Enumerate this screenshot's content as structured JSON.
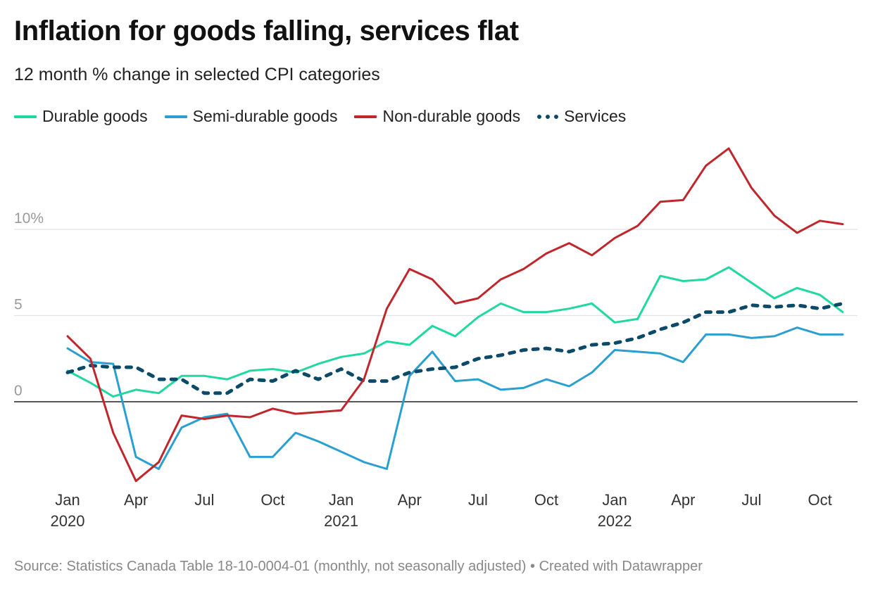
{
  "header": {
    "title": "Inflation for goods falling, services flat",
    "subtitle": "12 month % change in selected CPI categories"
  },
  "legend": [
    {
      "label": "Durable goods",
      "color": "#1fd9a0",
      "style": "solid"
    },
    {
      "label": "Semi-durable goods",
      "color": "#2a9fd0",
      "style": "solid"
    },
    {
      "label": "Non-durable goods",
      "color": "#c0272d",
      "style": "solid"
    },
    {
      "label": "Services",
      "color": "#0b4a69",
      "style": "dotted"
    }
  ],
  "footer": {
    "source": "Source: Statistics Canada Table 18-10-0004-01 (monthly, not seasonally adjusted) • Created with Datawrapper"
  },
  "chart_data": {
    "type": "line",
    "x": [
      "2020-01",
      "2020-02",
      "2020-03",
      "2020-04",
      "2020-05",
      "2020-06",
      "2020-07",
      "2020-08",
      "2020-09",
      "2020-10",
      "2020-11",
      "2020-12",
      "2021-01",
      "2021-02",
      "2021-03",
      "2021-04",
      "2021-05",
      "2021-06",
      "2021-07",
      "2021-08",
      "2021-09",
      "2021-10",
      "2021-11",
      "2021-12",
      "2022-01",
      "2022-02",
      "2022-03",
      "2022-04",
      "2022-05",
      "2022-06",
      "2022-07",
      "2022-08",
      "2022-09",
      "2022-10",
      "2022-11"
    ],
    "x_ticks": [
      {
        "month": "Jan",
        "year": "2020",
        "x": "2020-01"
      },
      {
        "month": "Apr",
        "year": "",
        "x": "2020-04"
      },
      {
        "month": "Jul",
        "year": "",
        "x": "2020-07"
      },
      {
        "month": "Oct",
        "year": "",
        "x": "2020-10"
      },
      {
        "month": "Jan",
        "year": "2021",
        "x": "2021-01"
      },
      {
        "month": "Apr",
        "year": "",
        "x": "2021-04"
      },
      {
        "month": "Jul",
        "year": "",
        "x": "2021-07"
      },
      {
        "month": "Oct",
        "year": "",
        "x": "2021-10"
      },
      {
        "month": "Jan",
        "year": "2022",
        "x": "2022-01"
      },
      {
        "month": "Apr",
        "year": "",
        "x": "2022-04"
      },
      {
        "month": "Jul",
        "year": "",
        "x": "2022-07"
      },
      {
        "month": "Oct",
        "year": "",
        "x": "2022-10"
      }
    ],
    "y_ticks": [
      {
        "value": 10,
        "label": "10%"
      },
      {
        "value": 5,
        "label": "5"
      },
      {
        "value": 0,
        "label": "0"
      }
    ],
    "ylim": [
      -4.8,
      15.5
    ],
    "grid": true,
    "legend_position": "top-left",
    "series": [
      {
        "name": "Durable goods",
        "color": "#1fd9a0",
        "style": "solid",
        "values": [
          1.8,
          1.1,
          0.3,
          0.7,
          0.5,
          1.5,
          1.5,
          1.3,
          1.8,
          1.9,
          1.7,
          2.2,
          2.6,
          2.8,
          3.5,
          3.3,
          4.4,
          3.8,
          4.9,
          5.7,
          5.2,
          5.2,
          5.4,
          5.7,
          4.6,
          4.8,
          7.3,
          7.0,
          7.1,
          7.8,
          6.9,
          6.0,
          6.6,
          6.2,
          5.2
        ]
      },
      {
        "name": "Semi-durable goods",
        "color": "#2a9fd0",
        "style": "solid",
        "values": [
          3.1,
          2.3,
          2.2,
          -3.2,
          -3.9,
          -1.5,
          -0.9,
          -0.7,
          -3.2,
          -3.2,
          -1.8,
          -2.3,
          -2.9,
          -3.5,
          -3.9,
          1.5,
          2.9,
          1.2,
          1.3,
          0.7,
          0.8,
          1.3,
          0.9,
          1.7,
          3.0,
          2.9,
          2.8,
          2.3,
          3.9,
          3.9,
          3.7,
          3.8,
          4.3,
          3.9,
          3.9
        ]
      },
      {
        "name": "Non-durable goods",
        "color": "#c0272d",
        "style": "solid",
        "values": [
          3.8,
          2.5,
          -1.8,
          -4.6,
          -3.5,
          -0.8,
          -1.0,
          -0.8,
          -0.9,
          -0.4,
          -0.7,
          -0.6,
          -0.5,
          1.3,
          5.4,
          7.7,
          7.1,
          5.7,
          6.0,
          7.1,
          7.7,
          8.6,
          9.2,
          8.5,
          9.5,
          10.2,
          11.6,
          11.7,
          13.7,
          14.7,
          12.4,
          10.8,
          9.8,
          10.5,
          10.3
        ]
      },
      {
        "name": "Services",
        "color": "#0b4a69",
        "style": "dotted",
        "values": [
          1.7,
          2.1,
          2.0,
          2.0,
          1.3,
          1.3,
          0.5,
          0.5,
          1.3,
          1.2,
          1.8,
          1.3,
          1.9,
          1.2,
          1.2,
          1.7,
          1.9,
          2.0,
          2.5,
          2.7,
          3.0,
          3.1,
          2.9,
          3.3,
          3.4,
          3.7,
          4.2,
          4.6,
          5.2,
          5.2,
          5.6,
          5.5,
          5.6,
          5.4,
          5.7
        ]
      }
    ]
  }
}
